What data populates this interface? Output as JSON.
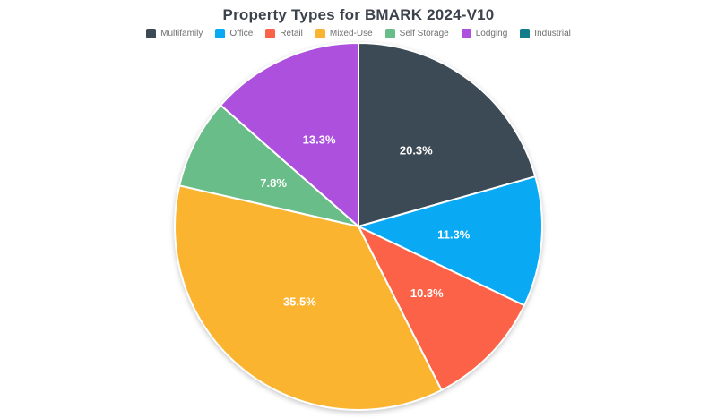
{
  "chart_data": {
    "type": "pie",
    "title": "Property Types for BMARK 2024-V10",
    "legend_position": "top",
    "start_angle_deg": 0,
    "direction": "clockwise",
    "slices": [
      {
        "label": "Multifamily",
        "value": 20.3,
        "pct_label": "20.3%",
        "color": "#3b4a54"
      },
      {
        "label": "Office",
        "value": 11.3,
        "pct_label": "11.3%",
        "color": "#09a9f4"
      },
      {
        "label": "Retail",
        "value": 10.3,
        "pct_label": "10.3%",
        "color": "#fb6248"
      },
      {
        "label": "Mixed-Use",
        "value": 35.5,
        "pct_label": "35.5%",
        "color": "#fbb430"
      },
      {
        "label": "Self Storage",
        "value": 7.8,
        "pct_label": "7.8%",
        "color": "#69bd89"
      },
      {
        "label": "Lodging",
        "value": 13.3,
        "pct_label": "13.3%",
        "color": "#ac50dd"
      },
      {
        "label": "Industrial",
        "value": 0,
        "pct_label": "",
        "color": "#117d8a"
      }
    ],
    "slice_label_color": "#ffffff",
    "title_color": "#3d434d",
    "legend_text_color": "#6f6f6f",
    "background_color": "#ffffff"
  }
}
